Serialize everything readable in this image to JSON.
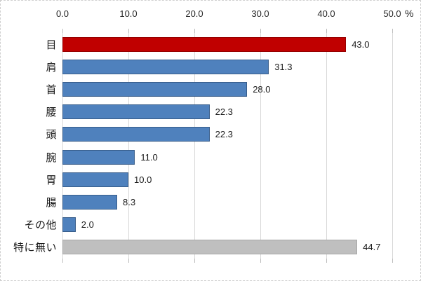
{
  "chart_data": {
    "type": "bar",
    "orientation": "horizontal",
    "title": "",
    "xlabel": "%",
    "ylabel": "",
    "xlim": [
      0,
      50
    ],
    "x_ticks": [
      "0.0",
      "10.0",
      "20.0",
      "30.0",
      "40.0",
      "50.0"
    ],
    "x_tick_values": [
      0,
      10,
      20,
      30,
      40,
      50
    ],
    "axis_position": "top",
    "grid": true,
    "legend": false,
    "categories": [
      "目",
      "肩",
      "首",
      "腰",
      "頭",
      "腕",
      "胃",
      "腸",
      "その他",
      "特に無い"
    ],
    "values": [
      43.0,
      31.3,
      28.0,
      22.3,
      22.3,
      11.0,
      10.0,
      8.3,
      2.0,
      44.7
    ],
    "value_labels": [
      "43.0",
      "31.3",
      "28.0",
      "22.3",
      "22.3",
      "11.0",
      "10.0",
      "8.3",
      "2.0",
      "44.7"
    ],
    "bar_fill_colors": [
      "#c00000",
      "#4f81bd",
      "#4f81bd",
      "#4f81bd",
      "#4f81bd",
      "#4f81bd",
      "#4f81bd",
      "#4f81bd",
      "#4f81bd",
      "#bfbfbf"
    ],
    "bar_border_colors": [
      "#980000",
      "#385d8a",
      "#385d8a",
      "#385d8a",
      "#385d8a",
      "#385d8a",
      "#385d8a",
      "#385d8a",
      "#385d8a",
      "#a6a6a6"
    ],
    "colors": {
      "highlight": "#c00000",
      "default": "#4f81bd",
      "muted": "#bfbfbf",
      "gridline": "#d9d9d9",
      "tick": "#bfbfbf",
      "text": "#1a1a1a"
    }
  }
}
